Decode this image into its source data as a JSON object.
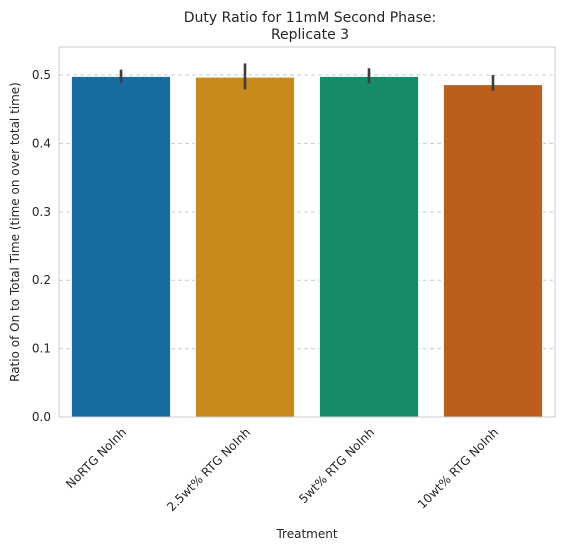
{
  "chart_data": {
    "type": "bar",
    "title": "Duty Ratio for 11mM Second Phase:",
    "subtitle": "Replicate 3",
    "xlabel": "Treatment",
    "ylabel": "Ratio of On to Total Time (time on over total time)",
    "categories": [
      "NoRTG NoInh",
      "2.5wt% RTG NoInh",
      "5wt% RTG NoInh",
      "10wt% RTG NoInh"
    ],
    "values": [
      0.498,
      0.497,
      0.498,
      0.486
    ],
    "error_low": [
      0.488,
      0.479,
      0.488,
      0.477
    ],
    "error_high": [
      0.508,
      0.517,
      0.51,
      0.5
    ],
    "ylim": [
      0,
      0.541
    ],
    "yticks": [
      "0.0",
      "0.1",
      "0.2",
      "0.3",
      "0.4",
      "0.5"
    ],
    "ytick_values": [
      0,
      0.1,
      0.2,
      0.3,
      0.4,
      0.5
    ],
    "grid": "horizontal dashed",
    "colors": [
      "#176ca1",
      "#c8891d",
      "#168b69",
      "#bc5f1c"
    ],
    "errorbar_color": "#3d3d3d",
    "grid_color": "#cccccc",
    "frame_color": "#cccccc"
  }
}
